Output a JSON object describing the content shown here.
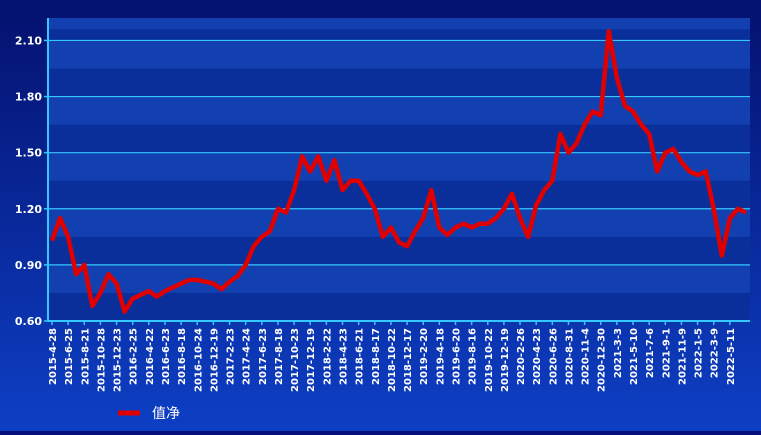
{
  "chart_data": {
    "type": "line",
    "categories": [
      "2015-4-28",
      null,
      "2015-6-25",
      null,
      "2015-8-21",
      null,
      "2015-10-28",
      null,
      "2015-12-23",
      null,
      "2016-2-25",
      null,
      "2016-4-22",
      null,
      "2016-6-23",
      null,
      "2016-8-18",
      null,
      "2016-10-24",
      null,
      "2016-12-19",
      null,
      "2017-2-23",
      null,
      "2017-4-24",
      null,
      "2017-6-23",
      null,
      "2017-8-18",
      null,
      "2017-10-23",
      null,
      "2017-12-19",
      null,
      "2018-2-22",
      null,
      "2018-4-23",
      null,
      "2018-6-21",
      null,
      "2018-8-17",
      null,
      "2018-10-22",
      null,
      "2018-12-17",
      null,
      "2019-2-20",
      null,
      "2019-4-18",
      null,
      "2019-6-20",
      null,
      "2019-8-16",
      null,
      "2019-10-22",
      null,
      "2019-12-19",
      null,
      "2020-2-26",
      null,
      "2020-4-23",
      null,
      "2020-6-26",
      null,
      "2020-8-31",
      null,
      "2020-11-4",
      null,
      "2020-12-30",
      null,
      "2021-3-3",
      null,
      "2021-5-10",
      null,
      "2021-7-6",
      null,
      "2021-9-1",
      null,
      "2021-11-9",
      null,
      "2022-1-5",
      null,
      "2022-3-9",
      null,
      "2022-5-11",
      null,
      null
    ],
    "series": [
      {
        "name": "值净",
        "color": "#e00000",
        "values": [
          1.03,
          1.15,
          1.05,
          0.85,
          0.9,
          0.68,
          0.75,
          0.85,
          0.8,
          0.65,
          0.72,
          0.74,
          0.76,
          0.73,
          0.76,
          0.78,
          0.8,
          0.82,
          0.82,
          0.81,
          0.8,
          0.77,
          0.81,
          0.84,
          0.9,
          1.0,
          1.05,
          1.08,
          1.2,
          1.18,
          1.3,
          1.48,
          1.4,
          1.48,
          1.35,
          1.46,
          1.3,
          1.35,
          1.35,
          1.28,
          1.2,
          1.05,
          1.1,
          1.02,
          1.0,
          1.08,
          1.15,
          1.3,
          1.1,
          1.06,
          1.1,
          1.12,
          1.1,
          1.12,
          1.12,
          1.15,
          1.2,
          1.28,
          1.15,
          1.05,
          1.22,
          1.3,
          1.35,
          1.6,
          1.5,
          1.55,
          1.65,
          1.72,
          1.7,
          2.15,
          1.9,
          1.75,
          1.72,
          1.65,
          1.6,
          1.4,
          1.5,
          1.52,
          1.45,
          1.4,
          1.38,
          1.4,
          1.2,
          0.95,
          1.15,
          1.2,
          1.18
        ]
      }
    ],
    "ylim": [
      0.6,
      2.22
    ],
    "yticks": [
      {
        "value": 0.6,
        "label": "0.60"
      },
      {
        "value": 0.9,
        "label": "0.90"
      },
      {
        "value": 1.2,
        "label": "1.20"
      },
      {
        "value": 1.5,
        "label": "1.50"
      },
      {
        "value": 1.8,
        "label": "1.80"
      },
      {
        "value": 2.1,
        "label": "2.10"
      }
    ],
    "grid": true
  }
}
